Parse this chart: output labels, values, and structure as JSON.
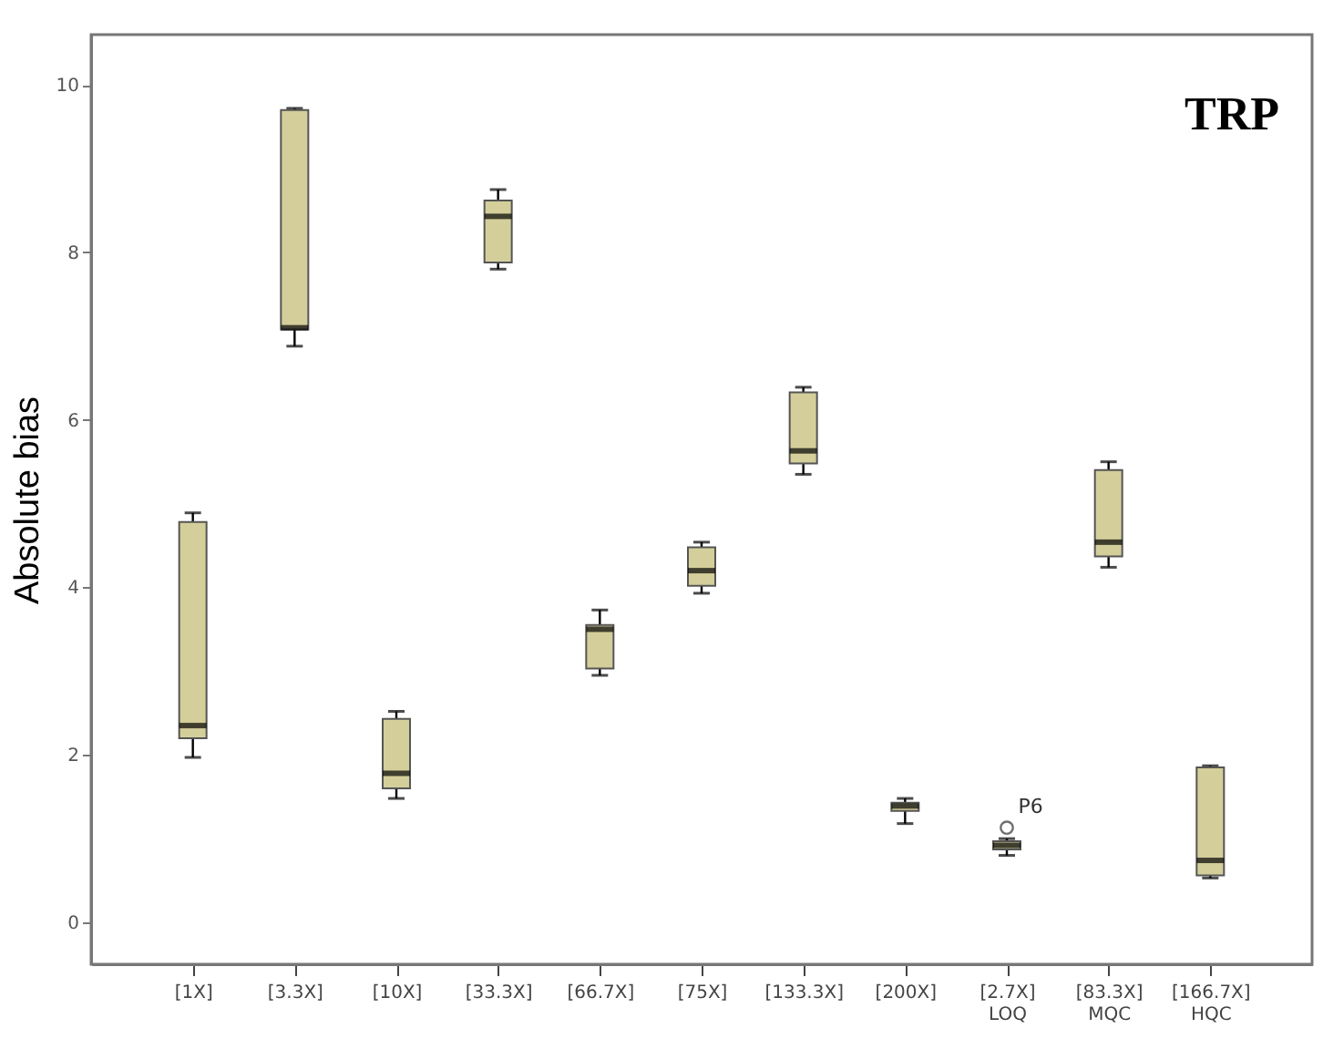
{
  "chart_data": {
    "type": "box",
    "title": "TRP",
    "ylabel": "Absolute bias",
    "color": "#d4cf9a",
    "categories": [
      "[1X]",
      "[3.3X]",
      "[10X]",
      "[33.3X]",
      "[66.7X]",
      "[75X]",
      "[133.3X]",
      "[200X]",
      "[2.7X]\nLOQ",
      "[83.3X]\nMQC",
      "[166.7X]\nHQC"
    ],
    "boxes": [
      {
        "low": 1.97,
        "q1": 2.2,
        "median": 2.35,
        "q3": 4.78,
        "high": 4.89
      },
      {
        "low": 6.88,
        "q1": 7.08,
        "median": 7.1,
        "q3": 9.7,
        "high": 9.72
      },
      {
        "low": 1.48,
        "q1": 1.6,
        "median": 1.78,
        "q3": 2.43,
        "high": 2.52
      },
      {
        "low": 7.8,
        "q1": 7.88,
        "median": 8.43,
        "q3": 8.62,
        "high": 8.75
      },
      {
        "low": 2.95,
        "q1": 3.03,
        "median": 3.5,
        "q3": 3.55,
        "high": 3.73
      },
      {
        "low": 3.93,
        "q1": 4.02,
        "median": 4.2,
        "q3": 4.48,
        "high": 4.54
      },
      {
        "low": 5.35,
        "q1": 5.48,
        "median": 5.63,
        "q3": 6.33,
        "high": 6.39
      },
      {
        "low": 1.18,
        "q1": 1.33,
        "median": 1.39,
        "q3": 1.43,
        "high": 1.48
      },
      {
        "low": 0.8,
        "q1": 0.87,
        "median": 0.92,
        "q3": 0.97,
        "high": 1.0,
        "outliers": [
          1.13
        ]
      },
      {
        "low": 4.24,
        "q1": 4.37,
        "median": 4.54,
        "q3": 5.4,
        "high": 5.5
      },
      {
        "low": 0.53,
        "q1": 0.56,
        "median": 0.74,
        "q3": 1.85,
        "high": 1.87
      }
    ],
    "ylim": [
      -0.5,
      10.6
    ],
    "yticks": [
      0,
      2,
      4,
      6,
      8,
      10
    ],
    "annotations": [
      {
        "text": "P6",
        "x": "[2.7X]\nLOQ",
        "y": 1.13
      }
    ]
  }
}
